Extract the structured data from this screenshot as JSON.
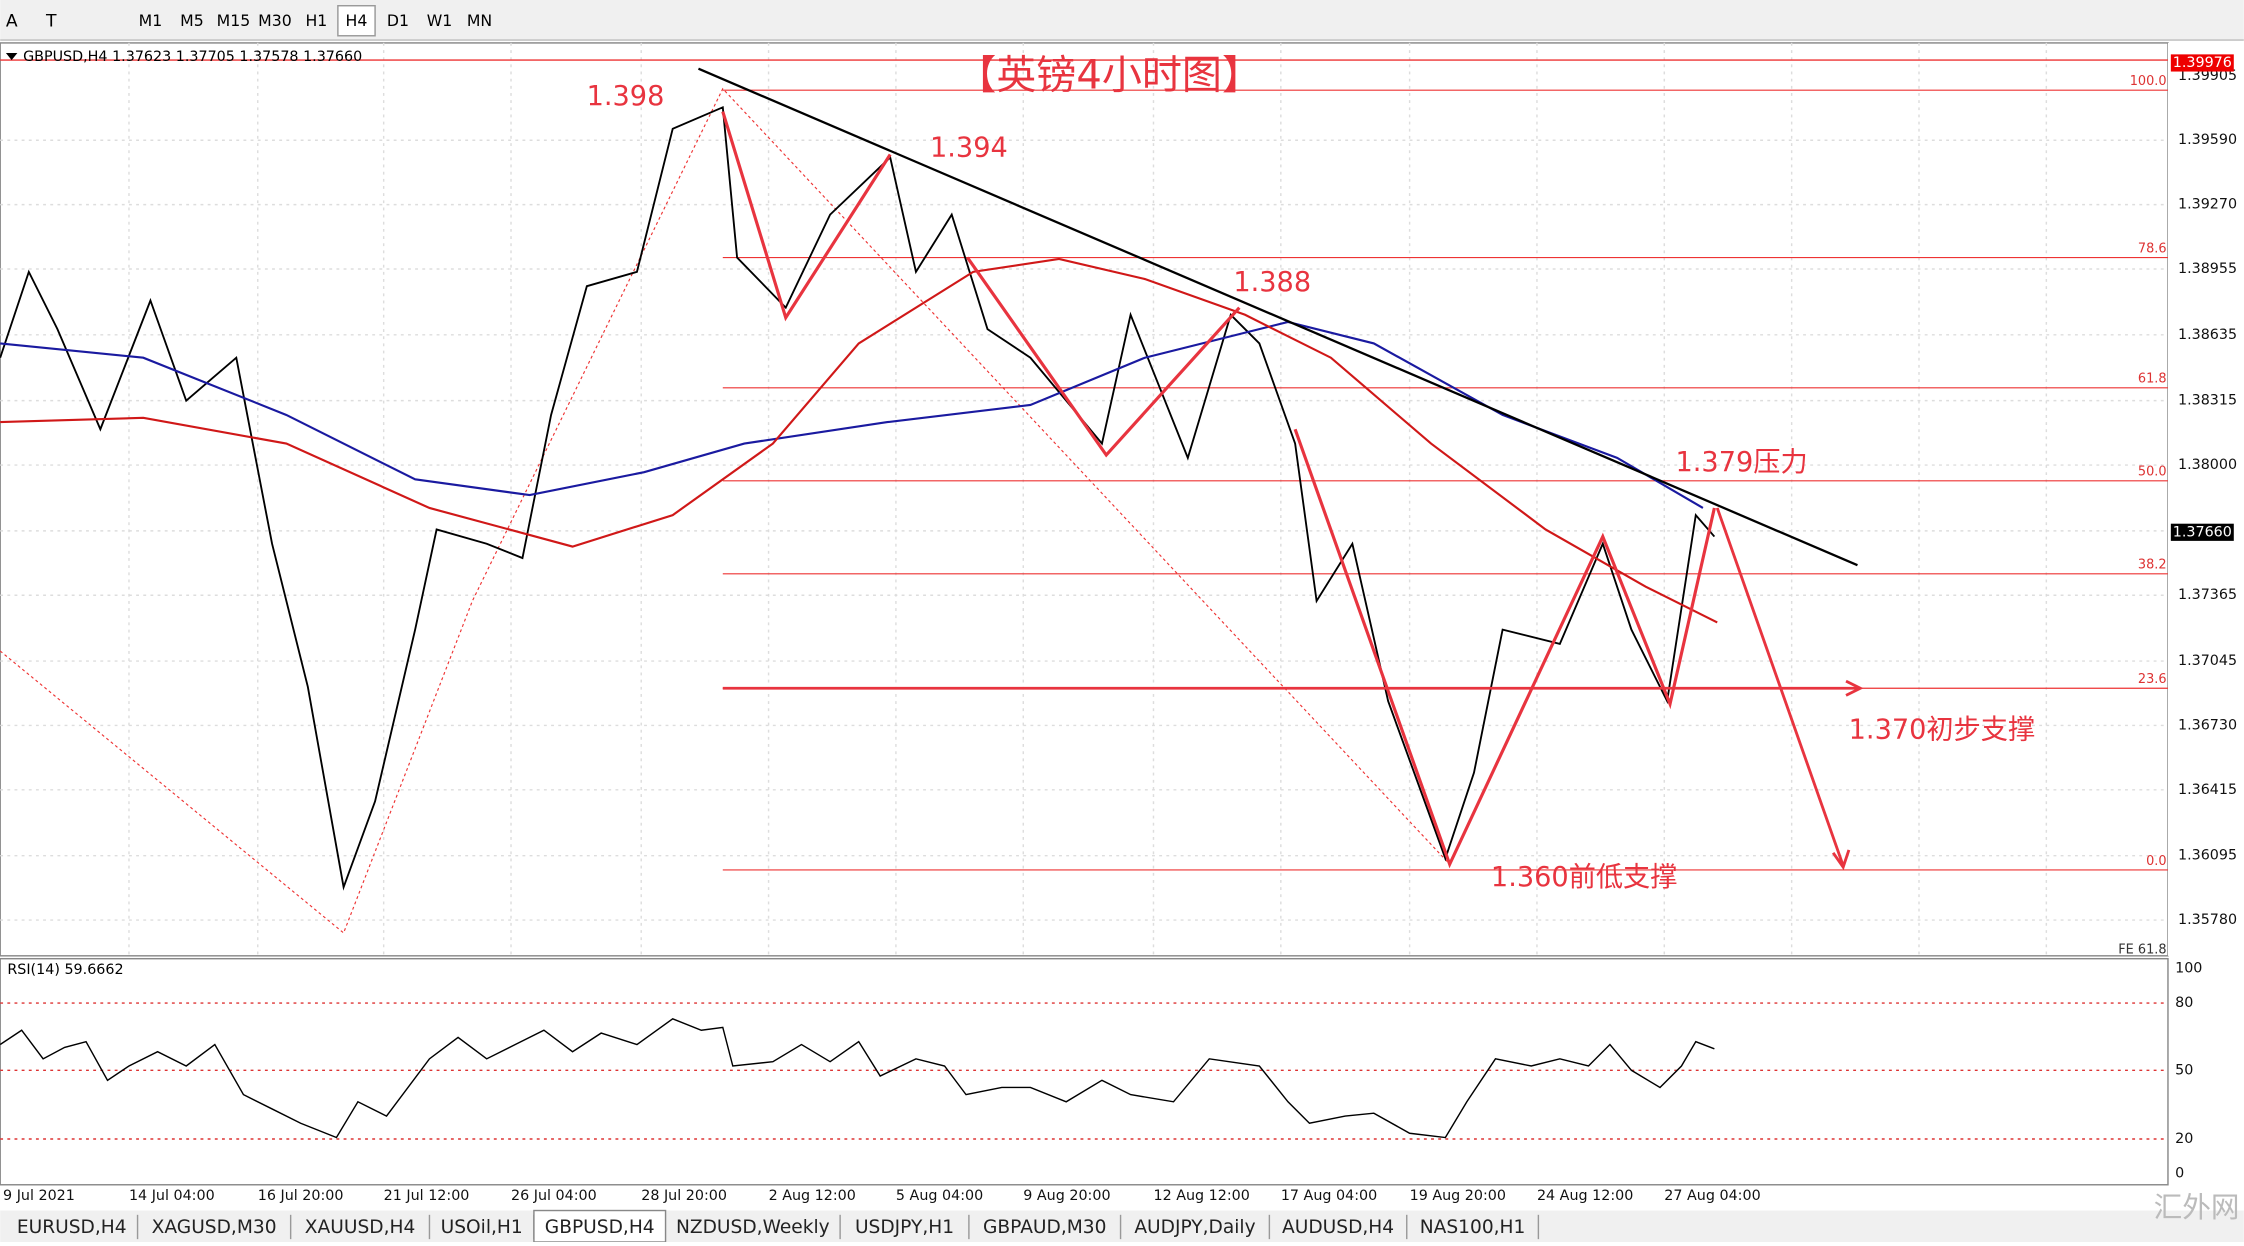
{
  "toolbar": {
    "tools": [
      "A",
      "T"
    ],
    "timeframes": [
      "M1",
      "M5",
      "M15",
      "M30",
      "H1",
      "H4",
      "D1",
      "W1",
      "MN"
    ]
  },
  "symbol_header": "GBPUSD,H4  1.37623 1.37705 1.37578 1.37660",
  "title": "【英镑4小时图】",
  "price_axis": {
    "labels": [
      "1.39905",
      "1.39590",
      "1.39270",
      "1.38955",
      "1.38635",
      "1.38315",
      "1.38000",
      "1.37365",
      "1.37045",
      "1.36730",
      "1.36415",
      "1.36095",
      "1.35780"
    ],
    "current_price": "1.37660",
    "high_marker": "1.39976"
  },
  "fib_levels": [
    "100.0",
    "78.6",
    "61.8",
    "50.0",
    "38.2",
    "23.6",
    "0.0"
  ],
  "fe_label": "FE 61.8",
  "annotations": [
    "1.398",
    "1.394",
    "1.388",
    "1.379压力",
    "1.370初步支撑",
    "1.360前低支撑"
  ],
  "rsi": {
    "label": "RSI(14) 59.6662",
    "levels": [
      "100",
      "80",
      "50",
      "20",
      "0"
    ]
  },
  "time_axis": [
    "9 Jul 2021",
    "14 Jul 04:00",
    "16 Jul 20:00",
    "21 Jul 12:00",
    "26 Jul 04:00",
    "28 Jul 20:00",
    "2 Aug 12:00",
    "5 Aug 04:00",
    "9 Aug 20:00",
    "12 Aug 12:00",
    "17 Aug 04:00",
    "19 Aug 20:00",
    "24 Aug 12:00",
    "27 Aug 04:00"
  ],
  "tabs": [
    "EURUSD,H4",
    "XAGUSD,M30",
    "XAUUSD,H4",
    "USOil,H1",
    "GBPUSD,H4",
    "NZDUSD,Weekly",
    "USDJPY,H1",
    "GBPAUD,M30",
    "AUDJPY,Daily",
    "AUDUSD,H4",
    "NAS100,H1"
  ],
  "watermark": "汇外网"
}
